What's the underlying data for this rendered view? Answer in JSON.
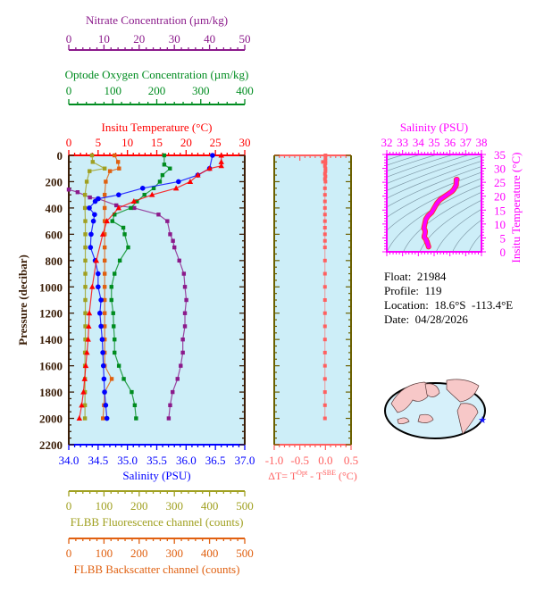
{
  "colors": {
    "temperature": "#ff0000",
    "salinity": "#0000ff",
    "oxygen": "#008c20",
    "nitrate": "#8b1a8b",
    "fluorescence": "#a0a020",
    "backscatter": "#e06010",
    "pressure_axis": "#3b1e08",
    "delta_t": "#ff6060",
    "ts": "#ff00ff",
    "plot_bg": "#cdeef8"
  },
  "info": {
    "float": "Float:  21984",
    "profile": "Profile:  119",
    "location": "Location:  18.6°S  -113.4°E",
    "date": "Date:  04/28/2026"
  },
  "chart_data": [
    {
      "type": "line",
      "ylabel": "Pressure (decibar)",
      "ylim": [
        2200,
        0
      ],
      "yticks": [
        "0",
        "200",
        "400",
        "600",
        "800",
        "1000",
        "1200",
        "1400",
        "1600",
        "1800",
        "2000",
        "2200"
      ],
      "axes": {
        "nitrate": {
          "title": "Nitrate Concentration (µm/kg)",
          "range": [
            0,
            50
          ],
          "ticks": [
            "0",
            "10",
            "20",
            "30",
            "40",
            "50"
          ]
        },
        "oxygen": {
          "title": "Optode Oxygen Concentration (µm/kg)",
          "range": [
            0,
            400
          ],
          "ticks": [
            "0",
            "100",
            "200",
            "300",
            "400"
          ]
        },
        "temperature": {
          "title": "Insitu Temperature (°C)",
          "range": [
            0,
            30
          ],
          "ticks": [
            "0",
            "5",
            "10",
            "15",
            "20",
            "25",
            "30"
          ]
        },
        "salinity": {
          "title": "Salinity (PSU)",
          "range": [
            34,
            37
          ],
          "ticks": [
            "34.0",
            "34.5",
            "35.0",
            "35.5",
            "36.0",
            "36.5",
            "37.0"
          ]
        },
        "fluorescence": {
          "title": "FLBB Fluorescence channel (counts)",
          "range": [
            0,
            500
          ],
          "ticks": [
            "0",
            "100",
            "200",
            "300",
            "400",
            "500"
          ]
        },
        "backscatter": {
          "title": "FLBB Backscatter channel (counts)",
          "range": [
            0,
            500
          ],
          "ticks": [
            "0",
            "100",
            "200",
            "300",
            "400",
            "500"
          ]
        }
      },
      "series": [
        {
          "key": "temperature",
          "marker": "triangle",
          "pressure": [
            0,
            50,
            80,
            100,
            150,
            200,
            250,
            300,
            350,
            400,
            500,
            600,
            800,
            1000,
            1200,
            1300,
            1400,
            1500,
            1600,
            1700,
            1800,
            1900,
            2000
          ],
          "values": [
            26,
            26,
            26,
            24,
            22,
            20.7,
            18.3,
            14.2,
            11.1,
            8.5,
            6.5,
            5.8,
            4.7,
            4.0,
            3.5,
            3.4,
            3.3,
            3.1,
            2.9,
            2.7,
            2.5,
            2.2,
            1.8
          ]
        },
        {
          "key": "salinity",
          "marker": "circle",
          "pressure": [
            0,
            100,
            150,
            200,
            250,
            300,
            330,
            350,
            400,
            450,
            500,
            600,
            700,
            800,
            900,
            1000,
            1100,
            1200,
            1300,
            1400,
            1500,
            1600,
            1700,
            1800,
            1900,
            2000
          ],
          "values": [
            36.45,
            36.4,
            36.2,
            35.87,
            35.26,
            34.85,
            34.5,
            34.45,
            34.35,
            34.44,
            34.42,
            34.38,
            34.37,
            34.45,
            34.5,
            34.5,
            34.55,
            34.53,
            34.55,
            34.57,
            34.58,
            34.59,
            34.6,
            34.61,
            34.63,
            34.65
          ]
        },
        {
          "key": "oxygen",
          "marker": "square",
          "pressure": [
            0,
            70,
            100,
            150,
            200,
            250,
            300,
            350,
            400,
            450,
            500,
            550,
            600,
            700,
            800,
            900,
            1000,
            1100,
            1200,
            1300,
            1400,
            1500,
            1600,
            1700,
            1800,
            1900,
            2000
          ],
          "values": [
            217,
            217,
            230,
            213,
            207,
            193,
            172,
            155,
            141,
            104,
            99,
            124,
            127,
            135,
            116,
            104,
            97,
            97,
            101,
            102,
            104,
            104,
            114,
            125,
            143,
            150,
            153
          ]
        },
        {
          "key": "nitrate",
          "marker": "square",
          "pressure": [
            260,
            280,
            320,
            330,
            380,
            400,
            450,
            500,
            600,
            650,
            700,
            800,
            900,
            1000,
            1100,
            1200,
            1300,
            1400,
            1500,
            1600,
            1700,
            1800,
            1900,
            2000
          ],
          "values": [
            0,
            2.5,
            6,
            8.4,
            13.5,
            18.6,
            25.5,
            28,
            28.8,
            29.6,
            30,
            31.4,
            32.7,
            33,
            33.4,
            33,
            33,
            32.4,
            32.4,
            31.8,
            30.9,
            29.5,
            28.8,
            28.4
          ]
        },
        {
          "key": "fluorescence",
          "marker": "square",
          "pressure": [
            0,
            50,
            100,
            120,
            200,
            300,
            400,
            500,
            600,
            700,
            800,
            900,
            1000,
            1100,
            1200,
            1300,
            1400,
            1500,
            1600,
            1700,
            1800,
            1900,
            2000
          ],
          "values": [
            66,
            68,
            102,
            59,
            51,
            46,
            46,
            47,
            47,
            47,
            47,
            47,
            47,
            47,
            47,
            47,
            47,
            46,
            46,
            46,
            46,
            46,
            46
          ]
        },
        {
          "key": "backscatter",
          "marker": "square",
          "pressure": [
            0,
            50,
            100,
            120,
            200,
            300,
            400,
            500,
            600,
            700,
            800,
            900,
            1000,
            1100,
            1200,
            1300,
            1400,
            1500,
            1600,
            1700,
            1800,
            1900,
            2000
          ],
          "values": [
            130,
            140,
            143,
            117,
            105,
            102,
            102,
            102,
            102,
            102,
            102,
            102,
            102,
            102,
            102,
            102,
            102,
            102,
            102,
            122,
            102,
            100,
            97
          ]
        }
      ]
    },
    {
      "type": "scatter",
      "xlabel": "ΔT= T",
      "xlabel_sup1": "Opt",
      "xlabel_mid": " - T",
      "xlabel_sup2": "SBE",
      "xlabel_end": " (°C)",
      "xlim": [
        -1.0,
        0.5
      ],
      "xticks": [
        "-1.0",
        "-0.5",
        "0.0",
        "0.5"
      ],
      "ylim": [
        2200,
        0
      ],
      "pressure": [
        0,
        20,
        40,
        50,
        60,
        80,
        100,
        120,
        140,
        160,
        180,
        200,
        250,
        300,
        350,
        400,
        450,
        500,
        550,
        600,
        650,
        700,
        800,
        900,
        1000,
        1100,
        1200,
        1300,
        1400,
        1500,
        1600,
        1700,
        1800,
        1900,
        2000
      ],
      "values": [
        0,
        0,
        0,
        -0.05,
        0,
        -0.01,
        0,
        0,
        -0.01,
        0,
        -0.01,
        0,
        -0.01,
        -0.01,
        -0.01,
        -0.01,
        -0.01,
        -0.01,
        -0.01,
        -0.01,
        -0.01,
        -0.01,
        -0.01,
        -0.01,
        -0.01,
        -0.01,
        -0.01,
        -0.01,
        -0.01,
        -0.01,
        -0.01,
        -0.01,
        -0.01,
        -0.01,
        -0.01
      ]
    },
    {
      "type": "scatter",
      "title": "Salinity (PSU)",
      "ylabel": "Insitu Temperature (°C)",
      "xlim": [
        32,
        38
      ],
      "ylim": [
        0,
        35
      ],
      "xticks": [
        "32",
        "33",
        "34",
        "35",
        "36",
        "37",
        "38"
      ],
      "yticks": [
        "0",
        "5",
        "10",
        "15",
        "20",
        "25",
        "30",
        "35"
      ],
      "note": "T-S curve drawn from the temperature and salinity profiles"
    }
  ]
}
